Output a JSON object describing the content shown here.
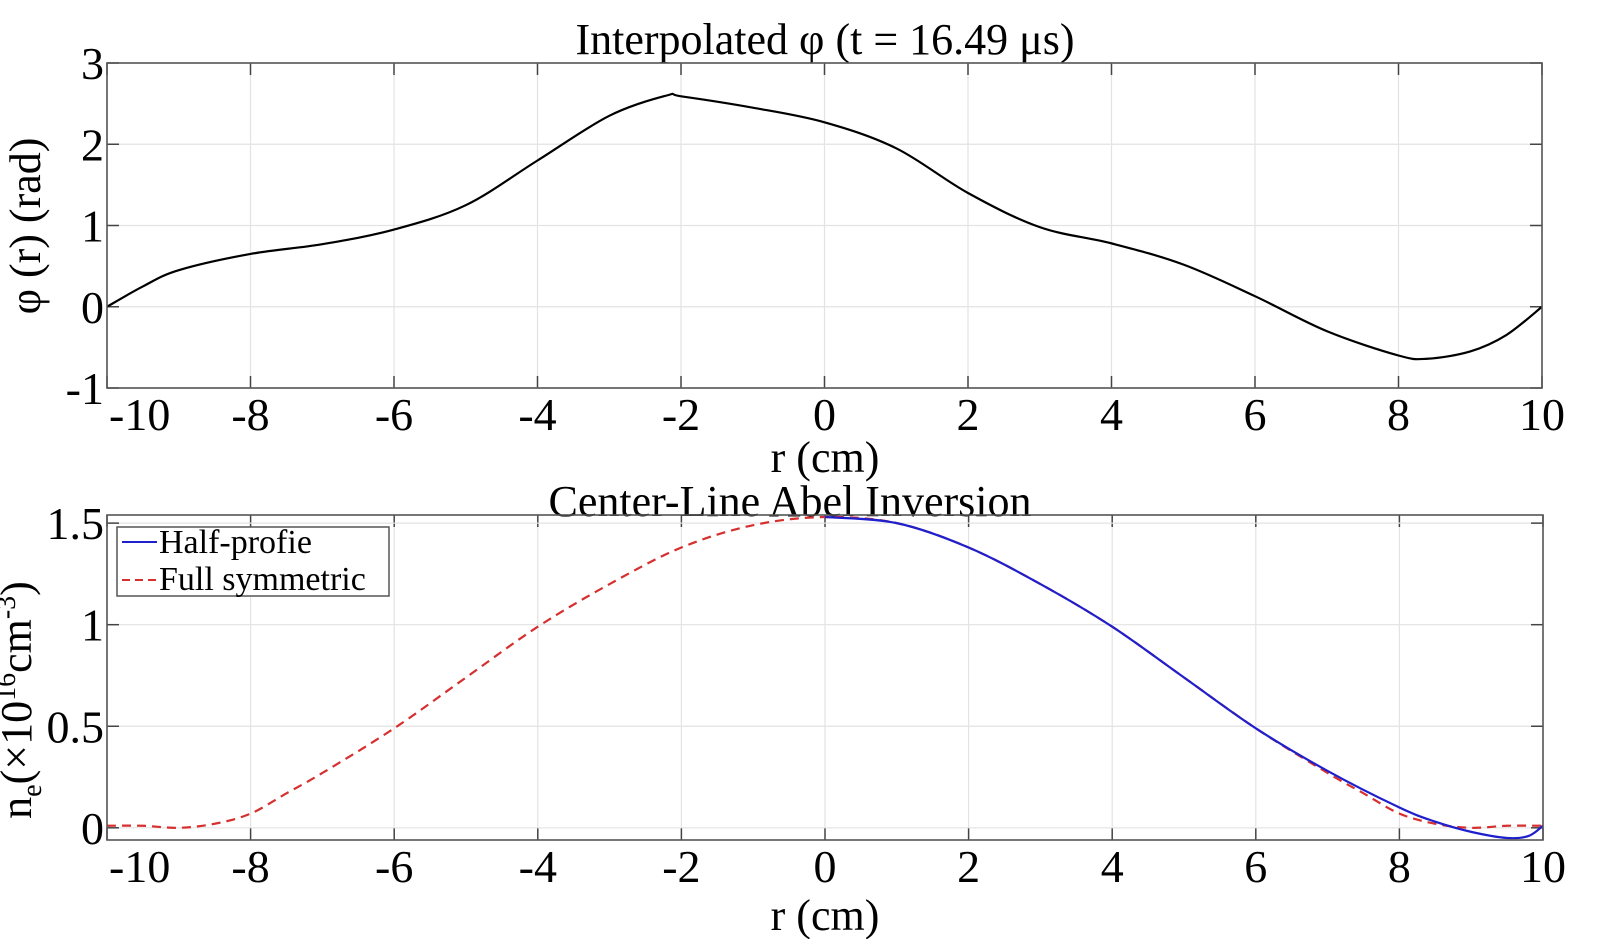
{
  "chart_data": [
    {
      "type": "line",
      "title": "Interpolated  φ (t = 16.49 μs)",
      "xlabel": "r (cm)",
      "ylabel": "φ (r) (rad)",
      "xlim": [
        -10,
        10
      ],
      "ylim": [
        -1,
        3
      ],
      "xticks": [
        "-10",
        "-8",
        "-6",
        "-4",
        "-2",
        "0",
        "2",
        "4",
        "6",
        "8",
        "10"
      ],
      "yticks": [
        "-1",
        "0",
        "1",
        "2",
        "3"
      ],
      "grid": true,
      "series": [
        {
          "color": "#000000",
          "style": "solid",
          "x": [
            -10,
            -9.5,
            -9,
            -8,
            -7,
            -6,
            -5,
            -4,
            -3,
            -2.2,
            -2,
            -1,
            0,
            1,
            2,
            3,
            4,
            5,
            6,
            7,
            8,
            8.4,
            9,
            9.5,
            10
          ],
          "y": [
            0,
            0.25,
            0.45,
            0.65,
            0.77,
            0.95,
            1.25,
            1.8,
            2.35,
            2.6,
            2.59,
            2.45,
            2.27,
            1.95,
            1.4,
            0.98,
            0.78,
            0.52,
            0.13,
            -0.3,
            -0.6,
            -0.64,
            -0.55,
            -0.35,
            0
          ]
        }
      ]
    },
    {
      "type": "line",
      "title": "Center-Line Abel Inversion",
      "xlabel": "r (cm)",
      "ylabel_main": "n",
      "ylabel_sub": "e",
      "ylabel_mid": "(×10",
      "ylabel_sup1": "16",
      "ylabel_unit": "cm",
      "ylabel_sup2": "-3",
      "ylabel_end": ")",
      "xlim": [
        -10,
        10
      ],
      "ylim": [
        -0.06,
        1.54
      ],
      "xticks": [
        "-10",
        "-8",
        "-6",
        "-4",
        "-2",
        "0",
        "2",
        "4",
        "6",
        "8",
        "10"
      ],
      "yticks": [
        "0",
        "0.5",
        "1",
        "1.5"
      ],
      "grid": true,
      "legend": "top-left",
      "series": [
        {
          "name": "Half-profie",
          "color": "#1f1fcc",
          "style": "solid",
          "x": [
            0,
            1,
            2,
            3,
            4,
            5,
            6,
            7,
            8,
            8.5,
            9,
            9.5,
            9.8,
            10
          ],
          "y": [
            1.53,
            1.5,
            1.38,
            1.2,
            0.99,
            0.74,
            0.49,
            0.28,
            0.1,
            0.03,
            -0.02,
            -0.05,
            -0.04,
            0.01
          ]
        },
        {
          "name": "Full symmetric",
          "color": "#d62f2f",
          "style": "dashed",
          "x": [
            -10,
            -9.5,
            -9,
            -8.5,
            -8,
            -7.5,
            -7,
            -6,
            -5,
            -4,
            -3,
            -2,
            -1,
            0,
            1,
            2,
            3,
            4,
            5,
            6,
            7,
            7.5,
            8,
            8.5,
            9,
            9.5,
            10
          ],
          "y": [
            0.01,
            0.01,
            0.0,
            0.02,
            0.07,
            0.17,
            0.27,
            0.49,
            0.74,
            0.99,
            1.2,
            1.38,
            1.49,
            1.53,
            1.5,
            1.38,
            1.2,
            0.99,
            0.74,
            0.49,
            0.27,
            0.17,
            0.07,
            0.02,
            0.0,
            0.01,
            0.01
          ]
        }
      ]
    }
  ]
}
